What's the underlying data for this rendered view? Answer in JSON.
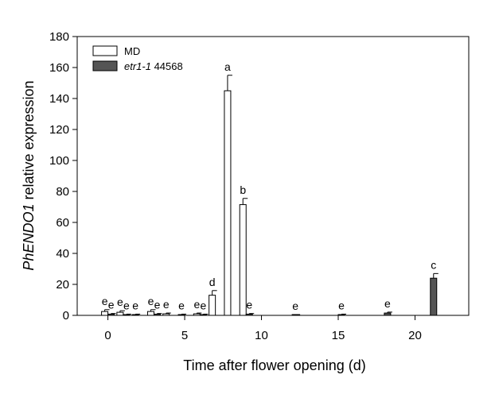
{
  "chart_data": {
    "type": "bar",
    "xlabel": "Time after flower opening (d)",
    "ylabel_italic": "PhENDO1",
    "ylabel_rest": " relative expression",
    "xlim": [
      -2,
      23.5
    ],
    "ylim": [
      0,
      180
    ],
    "xticks": [
      0,
      5,
      10,
      15,
      20
    ],
    "yticks": [
      0,
      20,
      40,
      60,
      80,
      100,
      120,
      140,
      160,
      180
    ],
    "legend_position": "top-left",
    "series": [
      {
        "name": "MD",
        "color": "#ffffff",
        "points": [
          {
            "x": 0,
            "y": 2.5,
            "err": 1.2,
            "label": "e"
          },
          {
            "x": 1,
            "y": 2.0,
            "err": 1.0,
            "label": "e"
          },
          {
            "x": 2,
            "y": 0.5,
            "err": 0.3,
            "label": "e"
          },
          {
            "x": 3,
            "y": 2.5,
            "err": 1.2,
            "label": "e"
          },
          {
            "x": 4,
            "y": 1.0,
            "err": 0.5,
            "label": "e"
          },
          {
            "x": 5,
            "y": 0.5,
            "err": 0.3,
            "label": "e"
          },
          {
            "x": 6,
            "y": 1.0,
            "err": 0.5,
            "label": "e"
          },
          {
            "x": 7,
            "y": 13.0,
            "err": 3.0,
            "label": "d"
          },
          {
            "x": 8,
            "y": 145.0,
            "err": 10.0,
            "label": "a"
          },
          {
            "x": 9,
            "y": 71.5,
            "err": 4.0,
            "label": "b"
          }
        ]
      },
      {
        "name_italic": "etr1-1",
        "name_rest": " 44568",
        "color": "#555555",
        "points": [
          {
            "x": 0,
            "y": 0.8,
            "err": 0.4,
            "label": "e"
          },
          {
            "x": 1,
            "y": 0.5,
            "err": 0.3,
            "label": "e"
          },
          {
            "x": 3,
            "y": 0.8,
            "err": 0.4,
            "label": "e"
          },
          {
            "x": 6,
            "y": 0.5,
            "err": 0.3,
            "label": "e"
          },
          {
            "x": 9,
            "y": 0.8,
            "err": 0.4,
            "label": "e"
          },
          {
            "x": 12,
            "y": 0.3,
            "err": 0.2,
            "label": "e"
          },
          {
            "x": 15,
            "y": 0.5,
            "err": 0.3,
            "label": "e"
          },
          {
            "x": 18,
            "y": 1.5,
            "err": 0.6,
            "label": "e"
          },
          {
            "x": 21,
            "y": 24.0,
            "err": 3.0,
            "label": "c"
          }
        ]
      }
    ]
  }
}
